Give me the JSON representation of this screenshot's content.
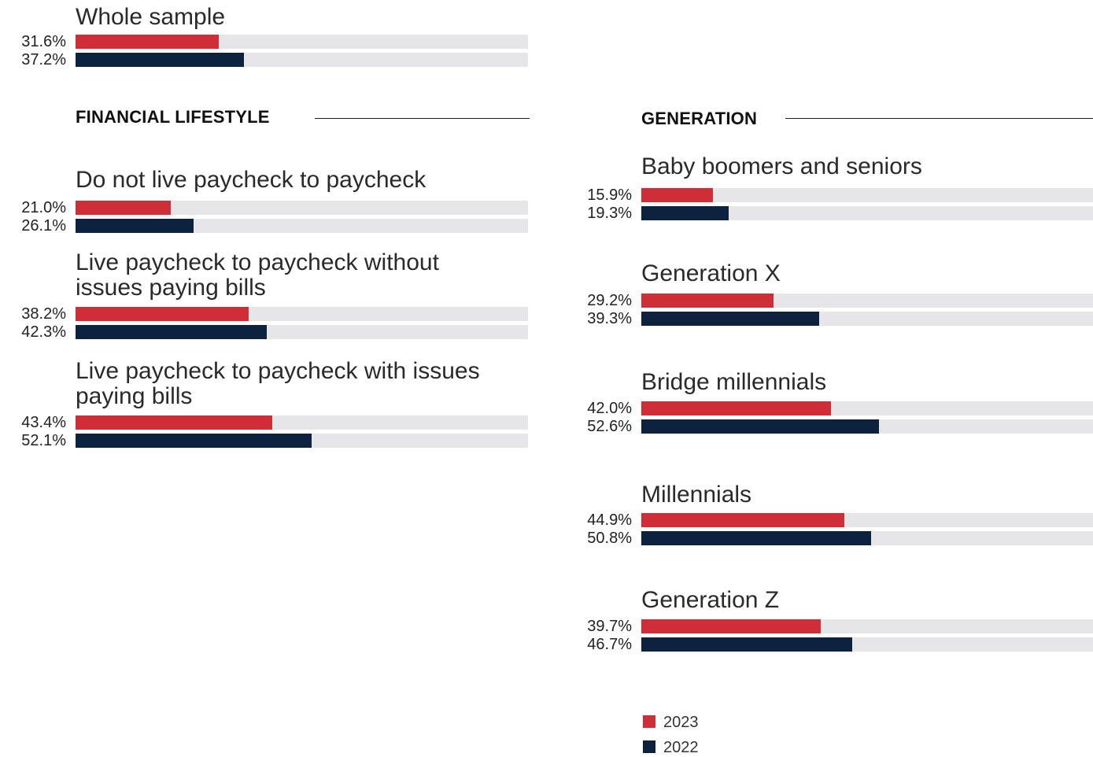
{
  "colors": {
    "series_2023": "#cf2e37",
    "series_2022": "#0c223f",
    "track": "#e6e6e8"
  },
  "legend": [
    {
      "label": "2023",
      "color": "#cf2e37"
    },
    {
      "label": "2022",
      "color": "#0c223f"
    }
  ],
  "sections": {
    "financial": {
      "title": "FINANCIAL LIFESTYLE"
    },
    "generation": {
      "title": "GENERATION"
    }
  },
  "chart_data": {
    "type": "bar",
    "orientation": "horizontal",
    "series_names": [
      "2023",
      "2022"
    ],
    "xlim": [
      0,
      100
    ],
    "groups": [
      {
        "label": "Whole sample",
        "section": "",
        "values": [
          31.6,
          37.2
        ],
        "labels": [
          "31.6%",
          "37.2%"
        ]
      },
      {
        "label": "Do not live paycheck to paycheck",
        "section": "FINANCIAL LIFESTYLE",
        "values": [
          21.0,
          26.1
        ],
        "labels": [
          "21.0%",
          "26.1%"
        ]
      },
      {
        "label": "Live paycheck to paycheck without issues paying bills",
        "section": "FINANCIAL LIFESTYLE",
        "values": [
          38.2,
          42.3
        ],
        "labels": [
          "38.2%",
          "42.3%"
        ]
      },
      {
        "label": "Live paycheck to paycheck with issues paying bills",
        "section": "FINANCIAL LIFESTYLE",
        "values": [
          43.4,
          52.1
        ],
        "labels": [
          "43.4%",
          "52.1%"
        ]
      },
      {
        "label": "Baby boomers and seniors",
        "section": "GENERATION",
        "values": [
          15.9,
          19.3
        ],
        "labels": [
          "15.9%",
          "19.3%"
        ]
      },
      {
        "label": "Generation X",
        "section": "GENERATION",
        "values": [
          29.2,
          39.3
        ],
        "labels": [
          "29.2%",
          "39.3%"
        ]
      },
      {
        "label": "Bridge millennials",
        "section": "GENERATION",
        "values": [
          42.0,
          52.6
        ],
        "labels": [
          "42.0%",
          "52.6%"
        ]
      },
      {
        "label": "Millennials",
        "section": "GENERATION",
        "values": [
          44.9,
          50.8
        ],
        "labels": [
          "44.9%",
          "50.8%"
        ]
      },
      {
        "label": "Generation Z",
        "section": "GENERATION",
        "values": [
          39.7,
          46.7
        ],
        "labels": [
          "39.7%",
          "46.7%"
        ]
      }
    ]
  }
}
